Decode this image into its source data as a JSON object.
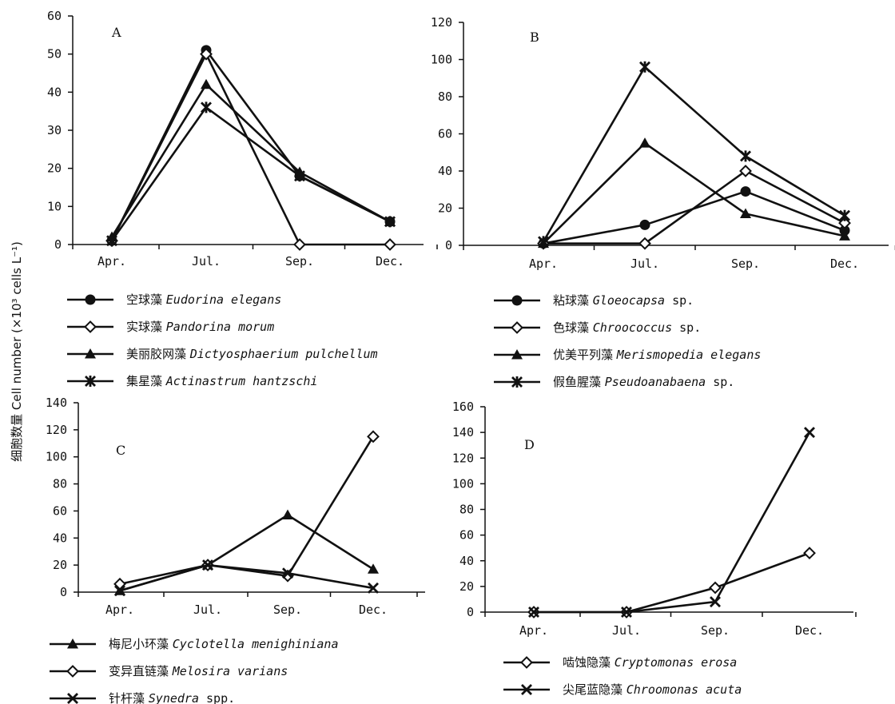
{
  "figure": {
    "ylabel": "细胞数量 Cell number (×10³ cells L⁻¹)"
  },
  "chart_data": [
    {
      "type": "line",
      "panel": "A",
      "categories": [
        "Apr.",
        "Jul.",
        "Sep.",
        "Dec."
      ],
      "ylim": [
        0,
        60
      ],
      "yticks": [
        0,
        10,
        20,
        30,
        40,
        50,
        60
      ],
      "series": [
        {
          "name_cn": "空球藻",
          "name_latin": "Eudorina elegans",
          "name_suffix": "",
          "marker": "circle",
          "values": [
            1,
            51,
            18,
            6
          ]
        },
        {
          "name_cn": "实球藻",
          "name_latin": "Pandorina morum",
          "name_suffix": "",
          "marker": "diamond",
          "values": [
            1,
            50,
            0,
            0
          ]
        },
        {
          "name_cn": "美丽胶网藻",
          "name_latin": "Dictyosphaerium pulchellum",
          "name_suffix": "",
          "marker": "triangle",
          "values": [
            2,
            42,
            19,
            6
          ]
        },
        {
          "name_cn": "集星藻",
          "name_latin": "Actinastrum hantzschi",
          "name_suffix": "",
          "marker": "star",
          "values": [
            1,
            36,
            18,
            6
          ]
        }
      ]
    },
    {
      "type": "line",
      "panel": "B",
      "categories": [
        "Apr.",
        "Jul.",
        "Sep.",
        "Dec."
      ],
      "ylim": [
        0,
        120
      ],
      "yticks": [
        0,
        20,
        40,
        60,
        80,
        100,
        120
      ],
      "series": [
        {
          "name_cn": "粘球藻",
          "name_latin": "Gloeocapsa",
          "name_suffix": " sp.",
          "marker": "circle",
          "values": [
            1,
            11,
            29,
            8
          ]
        },
        {
          "name_cn": "色球藻",
          "name_latin": "Chroococcus",
          "name_suffix": " sp.",
          "marker": "diamond",
          "values": [
            1,
            1,
            40,
            12
          ]
        },
        {
          "name_cn": "优美平列藻",
          "name_latin": "Merismopedia elegans",
          "name_suffix": "",
          "marker": "triangle",
          "values": [
            1,
            55,
            17,
            5
          ]
        },
        {
          "name_cn": "假鱼腥藻",
          "name_latin": "Pseudoanabaena",
          "name_suffix": " sp.",
          "marker": "star",
          "values": [
            2,
            96,
            48,
            16
          ]
        }
      ]
    },
    {
      "type": "line",
      "panel": "C",
      "categories": [
        "Apr.",
        "Jul.",
        "Sep.",
        "Dec."
      ],
      "ylim": [
        0,
        140
      ],
      "yticks": [
        0,
        20,
        40,
        60,
        80,
        100,
        120,
        140
      ],
      "series": [
        {
          "name_cn": "梅尼小环藻",
          "name_latin": "Cyclotella menighiniana",
          "name_suffix": "",
          "marker": "triangle",
          "values": [
            1,
            20,
            57,
            17
          ]
        },
        {
          "name_cn": "变异直链藻",
          "name_latin": "Melosira varians",
          "name_suffix": "",
          "marker": "diamond",
          "values": [
            6,
            20,
            12,
            115
          ]
        },
        {
          "name_cn": "针杆藻",
          "name_latin": "Synedra",
          "name_suffix": " spp.",
          "marker": "x",
          "values": [
            1,
            20,
            14,
            3
          ]
        }
      ]
    },
    {
      "type": "line",
      "panel": "D",
      "categories": [
        "Apr.",
        "Jul.",
        "Sep.",
        "Dec."
      ],
      "ylim": [
        0,
        160
      ],
      "yticks": [
        0,
        20,
        40,
        60,
        80,
        100,
        120,
        140,
        160
      ],
      "series": [
        {
          "name_cn": "啮蚀隐藻",
          "name_latin": "Cryptomonas erosa",
          "name_suffix": "",
          "marker": "diamond",
          "values": [
            0,
            0,
            19,
            46
          ]
        },
        {
          "name_cn": "尖尾蓝隐藻",
          "name_latin": "Chroomonas acuta",
          "name_suffix": "",
          "marker": "x",
          "values": [
            0,
            0,
            8,
            140
          ]
        }
      ]
    }
  ]
}
